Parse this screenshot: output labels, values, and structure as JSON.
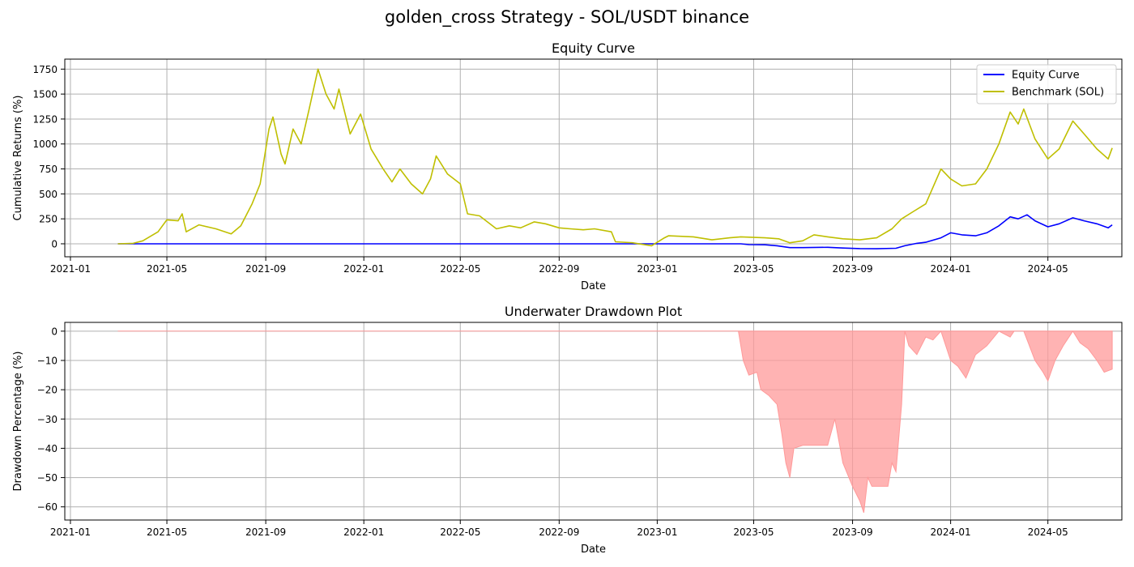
{
  "figure_title": "golden_cross Strategy - SOL/USDT binance",
  "colors": {
    "equity": "#0000ff",
    "benchmark": "#bfbf00",
    "drawdown_fill": "#ff9999",
    "grid": "#b0b0b0"
  },
  "chart_data": [
    {
      "type": "line",
      "title": "Equity Curve",
      "xlabel": "Date",
      "ylabel": "Cumulative Returns (%)",
      "grid": true,
      "legend_position": "upper right",
      "x_tick_labels": [
        "2021-01",
        "2021-05",
        "2021-09",
        "2022-01",
        "2022-05",
        "2022-09",
        "2023-01",
        "2023-05",
        "2023-09",
        "2024-01",
        "2024-05"
      ],
      "y_ticks": [
        0,
        250,
        500,
        750,
        1000,
        1250,
        1500,
        1750
      ],
      "xlim": [
        "2020-12-25",
        "2024-08-01"
      ],
      "ylim": [
        -130,
        1850
      ],
      "series": [
        {
          "name": "Equity Curve",
          "color": "#0000ff",
          "points": [
            [
              "2021-03-01",
              0
            ],
            [
              "2022-11-01",
              0
            ],
            [
              "2023-03-01",
              0
            ],
            [
              "2023-04-15",
              0
            ],
            [
              "2023-04-25",
              -8
            ],
            [
              "2023-05-15",
              -10
            ],
            [
              "2023-05-30",
              -20
            ],
            [
              "2023-06-15",
              -38
            ],
            [
              "2023-07-01",
              -38
            ],
            [
              "2023-08-01",
              -35
            ],
            [
              "2023-08-20",
              -42
            ],
            [
              "2023-09-10",
              -48
            ],
            [
              "2023-10-01",
              -50
            ],
            [
              "2023-10-25",
              -45
            ],
            [
              "2023-11-05",
              -20
            ],
            [
              "2023-11-20",
              5
            ],
            [
              "2023-12-01",
              15
            ],
            [
              "2023-12-20",
              60
            ],
            [
              "2024-01-01",
              110
            ],
            [
              "2024-01-15",
              90
            ],
            [
              "2024-02-01",
              80
            ],
            [
              "2024-02-15",
              110
            ],
            [
              "2024-03-01",
              180
            ],
            [
              "2024-03-15",
              270
            ],
            [
              "2024-03-25",
              250
            ],
            [
              "2024-04-05",
              290
            ],
            [
              "2024-04-15",
              230
            ],
            [
              "2024-05-01",
              170
            ],
            [
              "2024-05-15",
              200
            ],
            [
              "2024-06-01",
              260
            ],
            [
              "2024-06-15",
              230
            ],
            [
              "2024-07-01",
              200
            ],
            [
              "2024-07-15",
              160
            ],
            [
              "2024-07-20",
              190
            ]
          ]
        },
        {
          "name": "Benchmark (SOL)",
          "color": "#bfbf00",
          "points": [
            [
              "2021-03-01",
              0
            ],
            [
              "2021-03-20",
              5
            ],
            [
              "2021-04-01",
              30
            ],
            [
              "2021-04-20",
              120
            ],
            [
              "2021-05-01",
              240
            ],
            [
              "2021-05-15",
              230
            ],
            [
              "2021-05-20",
              300
            ],
            [
              "2021-05-25",
              120
            ],
            [
              "2021-06-10",
              190
            ],
            [
              "2021-07-01",
              150
            ],
            [
              "2021-07-20",
              100
            ],
            [
              "2021-08-01",
              180
            ],
            [
              "2021-08-15",
              400
            ],
            [
              "2021-08-25",
              600
            ],
            [
              "2021-09-05",
              1150
            ],
            [
              "2021-09-10",
              1270
            ],
            [
              "2021-09-20",
              900
            ],
            [
              "2021-09-25",
              800
            ],
            [
              "2021-10-05",
              1150
            ],
            [
              "2021-10-15",
              1000
            ],
            [
              "2021-10-25",
              1350
            ],
            [
              "2021-11-05",
              1750
            ],
            [
              "2021-11-15",
              1500
            ],
            [
              "2021-11-25",
              1350
            ],
            [
              "2021-12-01",
              1550
            ],
            [
              "2021-12-15",
              1100
            ],
            [
              "2021-12-28",
              1300
            ],
            [
              "2022-01-10",
              950
            ],
            [
              "2022-01-25",
              750
            ],
            [
              "2022-02-05",
              620
            ],
            [
              "2022-02-15",
              750
            ],
            [
              "2022-03-01",
              600
            ],
            [
              "2022-03-15",
              500
            ],
            [
              "2022-03-25",
              650
            ],
            [
              "2022-04-01",
              880
            ],
            [
              "2022-04-15",
              700
            ],
            [
              "2022-05-01",
              600
            ],
            [
              "2022-05-10",
              300
            ],
            [
              "2022-05-25",
              280
            ],
            [
              "2022-06-15",
              150
            ],
            [
              "2022-07-01",
              180
            ],
            [
              "2022-07-15",
              160
            ],
            [
              "2022-08-01",
              220
            ],
            [
              "2022-08-15",
              200
            ],
            [
              "2022-09-01",
              160
            ],
            [
              "2022-09-15",
              150
            ],
            [
              "2022-10-01",
              140
            ],
            [
              "2022-10-15",
              150
            ],
            [
              "2022-11-05",
              120
            ],
            [
              "2022-11-10",
              20
            ],
            [
              "2022-12-01",
              10
            ],
            [
              "2022-12-25",
              -20
            ],
            [
              "2023-01-10",
              60
            ],
            [
              "2023-01-15",
              80
            ],
            [
              "2023-02-15",
              70
            ],
            [
              "2023-03-10",
              40
            ],
            [
              "2023-04-01",
              60
            ],
            [
              "2023-04-15",
              70
            ],
            [
              "2023-05-15",
              60
            ],
            [
              "2023-06-01",
              50
            ],
            [
              "2023-06-15",
              10
            ],
            [
              "2023-07-01",
              30
            ],
            [
              "2023-07-15",
              90
            ],
            [
              "2023-08-01",
              70
            ],
            [
              "2023-08-20",
              50
            ],
            [
              "2023-09-10",
              40
            ],
            [
              "2023-10-01",
              60
            ],
            [
              "2023-10-20",
              150
            ],
            [
              "2023-11-01",
              250
            ],
            [
              "2023-11-15",
              320
            ],
            [
              "2023-12-01",
              400
            ],
            [
              "2023-12-20",
              750
            ],
            [
              "2024-01-01",
              650
            ],
            [
              "2024-01-15",
              580
            ],
            [
              "2024-02-01",
              600
            ],
            [
              "2024-02-15",
              750
            ],
            [
              "2024-03-01",
              1000
            ],
            [
              "2024-03-15",
              1320
            ],
            [
              "2024-03-25",
              1200
            ],
            [
              "2024-04-01",
              1350
            ],
            [
              "2024-04-15",
              1050
            ],
            [
              "2024-05-01",
              850
            ],
            [
              "2024-05-15",
              950
            ],
            [
              "2024-06-01",
              1230
            ],
            [
              "2024-06-15",
              1100
            ],
            [
              "2024-07-01",
              950
            ],
            [
              "2024-07-15",
              850
            ],
            [
              "2024-07-20",
              960
            ]
          ]
        }
      ]
    },
    {
      "type": "area",
      "title": "Underwater Drawdown Plot",
      "xlabel": "Date",
      "ylabel": "Drawdown Percentage (%)",
      "grid": true,
      "x_tick_labels": [
        "2021-01",
        "2021-05",
        "2021-09",
        "2022-01",
        "2022-05",
        "2022-09",
        "2023-01",
        "2023-05",
        "2023-09",
        "2024-01",
        "2024-05"
      ],
      "y_ticks": [
        0,
        -10,
        -20,
        -30,
        -40,
        -50,
        -60
      ],
      "xlim": [
        "2020-12-25",
        "2024-08-01"
      ],
      "ylim": [
        -64.5,
        3
      ],
      "series": [
        {
          "name": "Drawdown",
          "color": "#ff9999",
          "points": [
            [
              "2021-03-01",
              0
            ],
            [
              "2023-04-12",
              0
            ],
            [
              "2023-04-18",
              -10
            ],
            [
              "2023-04-25",
              -15
            ],
            [
              "2023-05-05",
              -14
            ],
            [
              "2023-05-10",
              -20
            ],
            [
              "2023-05-20",
              -22
            ],
            [
              "2023-05-30",
              -25
            ],
            [
              "2023-06-05",
              -35
            ],
            [
              "2023-06-10",
              -45
            ],
            [
              "2023-06-15",
              -50
            ],
            [
              "2023-06-20",
              -40
            ],
            [
              "2023-07-01",
              -39
            ],
            [
              "2023-08-01",
              -39
            ],
            [
              "2023-08-10",
              -30
            ],
            [
              "2023-08-20",
              -45
            ],
            [
              "2023-09-01",
              -53
            ],
            [
              "2023-09-10",
              -58
            ],
            [
              "2023-09-15",
              -62
            ],
            [
              "2023-09-20",
              -50
            ],
            [
              "2023-09-25",
              -53
            ],
            [
              "2023-10-01",
              -53
            ],
            [
              "2023-10-15",
              -53
            ],
            [
              "2023-10-20",
              -45
            ],
            [
              "2023-10-25",
              -48
            ],
            [
              "2023-11-01",
              -25
            ],
            [
              "2023-11-05",
              0
            ],
            [
              "2023-11-10",
              -5
            ],
            [
              "2023-11-20",
              -8
            ],
            [
              "2023-12-01",
              -2
            ],
            [
              "2023-12-10",
              -3
            ],
            [
              "2023-12-20",
              0
            ],
            [
              "2024-01-01",
              -10
            ],
            [
              "2024-01-10",
              -12
            ],
            [
              "2024-01-20",
              -16
            ],
            [
              "2024-02-01",
              -8
            ],
            [
              "2024-02-15",
              -5
            ],
            [
              "2024-03-01",
              0
            ],
            [
              "2024-03-15",
              -2
            ],
            [
              "2024-03-20",
              0
            ],
            [
              "2024-04-01",
              0
            ],
            [
              "2024-04-15",
              -10
            ],
            [
              "2024-04-25",
              -14
            ],
            [
              "2024-05-01",
              -17
            ],
            [
              "2024-05-10",
              -10
            ],
            [
              "2024-05-20",
              -5
            ],
            [
              "2024-06-01",
              0
            ],
            [
              "2024-06-10",
              -4
            ],
            [
              "2024-06-20",
              -6
            ],
            [
              "2024-07-01",
              -10
            ],
            [
              "2024-07-10",
              -14
            ],
            [
              "2024-07-20",
              -13
            ]
          ]
        }
      ]
    }
  ]
}
